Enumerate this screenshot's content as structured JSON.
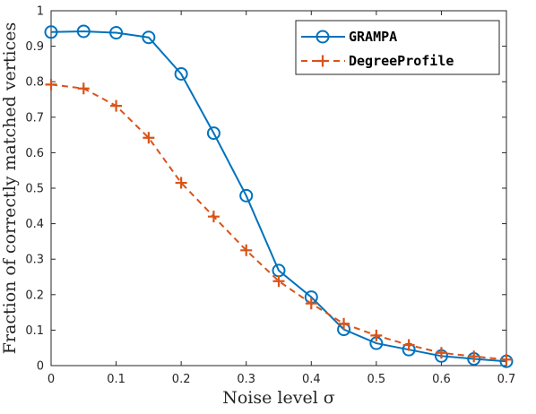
{
  "chart_data": {
    "type": "line",
    "xlabel": "Noise level σ",
    "ylabel": "Fraction of correctly matched vertices",
    "xlim": [
      0,
      0.7
    ],
    "ylim": [
      0,
      1
    ],
    "xticks": [
      0,
      0.1,
      0.2,
      0.3,
      0.4,
      0.5,
      0.6,
      0.7
    ],
    "yticks": [
      0,
      0.1,
      0.2,
      0.3,
      0.4,
      0.5,
      0.6,
      0.7,
      0.8,
      0.9,
      1
    ],
    "grid": false,
    "legend_position": "top-right",
    "x": [
      0,
      0.05,
      0.1,
      0.15,
      0.2,
      0.25,
      0.3,
      0.35,
      0.4,
      0.45,
      0.5,
      0.55,
      0.6,
      0.65,
      0.7
    ],
    "series": [
      {
        "name": "GRAMPA",
        "color": "#0072BD",
        "line_style": "solid",
        "marker": "circle",
        "values": [
          0.94,
          0.942,
          0.938,
          0.925,
          0.822,
          0.655,
          0.479,
          0.268,
          0.193,
          0.102,
          0.063,
          0.045,
          0.027,
          0.019,
          0.012
        ]
      },
      {
        "name": "DegreeProfile",
        "color": "#D95319",
        "line_style": "dashed",
        "marker": "plus",
        "values": [
          0.792,
          0.781,
          0.732,
          0.642,
          0.515,
          0.42,
          0.325,
          0.238,
          0.175,
          0.118,
          0.085,
          0.058,
          0.036,
          0.026,
          0.017
        ]
      }
    ]
  }
}
